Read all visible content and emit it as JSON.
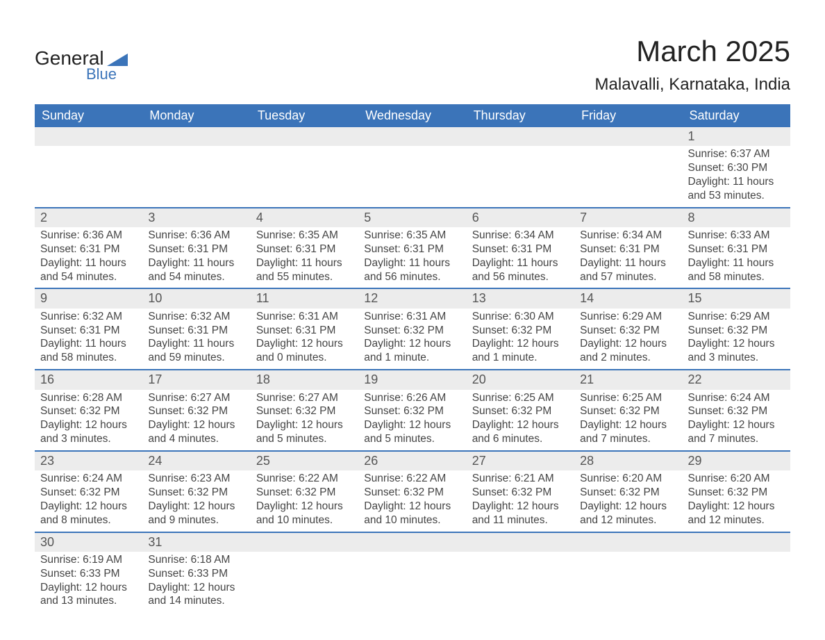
{
  "logo": {
    "word1": "General",
    "word2": "Blue",
    "triangle_color": "#3b74b9"
  },
  "title": "March 2025",
  "location": "Malavalli, Karnataka, India",
  "colors": {
    "header_bg": "#3b74b9",
    "header_text": "#ffffff",
    "band_bg": "#ececec",
    "band_text": "#555555",
    "body_text": "#444444",
    "rule": "#3b74b9",
    "page_bg": "#ffffff"
  },
  "typography": {
    "title_fontsize": 42,
    "location_fontsize": 24,
    "dow_fontsize": 18,
    "daynum_fontsize": 18,
    "body_fontsize": 15.5
  },
  "days_of_week": [
    "Sunday",
    "Monday",
    "Tuesday",
    "Wednesday",
    "Thursday",
    "Friday",
    "Saturday"
  ],
  "weeks": [
    [
      null,
      null,
      null,
      null,
      null,
      null,
      {
        "n": "1",
        "sr": "6:37 AM",
        "ss": "6:30 PM",
        "dl": "11 hours and 53 minutes."
      }
    ],
    [
      {
        "n": "2",
        "sr": "6:36 AM",
        "ss": "6:31 PM",
        "dl": "11 hours and 54 minutes."
      },
      {
        "n": "3",
        "sr": "6:36 AM",
        "ss": "6:31 PM",
        "dl": "11 hours and 54 minutes."
      },
      {
        "n": "4",
        "sr": "6:35 AM",
        "ss": "6:31 PM",
        "dl": "11 hours and 55 minutes."
      },
      {
        "n": "5",
        "sr": "6:35 AM",
        "ss": "6:31 PM",
        "dl": "11 hours and 56 minutes."
      },
      {
        "n": "6",
        "sr": "6:34 AM",
        "ss": "6:31 PM",
        "dl": "11 hours and 56 minutes."
      },
      {
        "n": "7",
        "sr": "6:34 AM",
        "ss": "6:31 PM",
        "dl": "11 hours and 57 minutes."
      },
      {
        "n": "8",
        "sr": "6:33 AM",
        "ss": "6:31 PM",
        "dl": "11 hours and 58 minutes."
      }
    ],
    [
      {
        "n": "9",
        "sr": "6:32 AM",
        "ss": "6:31 PM",
        "dl": "11 hours and 58 minutes."
      },
      {
        "n": "10",
        "sr": "6:32 AM",
        "ss": "6:31 PM",
        "dl": "11 hours and 59 minutes."
      },
      {
        "n": "11",
        "sr": "6:31 AM",
        "ss": "6:31 PM",
        "dl": "12 hours and 0 minutes."
      },
      {
        "n": "12",
        "sr": "6:31 AM",
        "ss": "6:32 PM",
        "dl": "12 hours and 1 minute."
      },
      {
        "n": "13",
        "sr": "6:30 AM",
        "ss": "6:32 PM",
        "dl": "12 hours and 1 minute."
      },
      {
        "n": "14",
        "sr": "6:29 AM",
        "ss": "6:32 PM",
        "dl": "12 hours and 2 minutes."
      },
      {
        "n": "15",
        "sr": "6:29 AM",
        "ss": "6:32 PM",
        "dl": "12 hours and 3 minutes."
      }
    ],
    [
      {
        "n": "16",
        "sr": "6:28 AM",
        "ss": "6:32 PM",
        "dl": "12 hours and 3 minutes."
      },
      {
        "n": "17",
        "sr": "6:27 AM",
        "ss": "6:32 PM",
        "dl": "12 hours and 4 minutes."
      },
      {
        "n": "18",
        "sr": "6:27 AM",
        "ss": "6:32 PM",
        "dl": "12 hours and 5 minutes."
      },
      {
        "n": "19",
        "sr": "6:26 AM",
        "ss": "6:32 PM",
        "dl": "12 hours and 5 minutes."
      },
      {
        "n": "20",
        "sr": "6:25 AM",
        "ss": "6:32 PM",
        "dl": "12 hours and 6 minutes."
      },
      {
        "n": "21",
        "sr": "6:25 AM",
        "ss": "6:32 PM",
        "dl": "12 hours and 7 minutes."
      },
      {
        "n": "22",
        "sr": "6:24 AM",
        "ss": "6:32 PM",
        "dl": "12 hours and 7 minutes."
      }
    ],
    [
      {
        "n": "23",
        "sr": "6:24 AM",
        "ss": "6:32 PM",
        "dl": "12 hours and 8 minutes."
      },
      {
        "n": "24",
        "sr": "6:23 AM",
        "ss": "6:32 PM",
        "dl": "12 hours and 9 minutes."
      },
      {
        "n": "25",
        "sr": "6:22 AM",
        "ss": "6:32 PM",
        "dl": "12 hours and 10 minutes."
      },
      {
        "n": "26",
        "sr": "6:22 AM",
        "ss": "6:32 PM",
        "dl": "12 hours and 10 minutes."
      },
      {
        "n": "27",
        "sr": "6:21 AM",
        "ss": "6:32 PM",
        "dl": "12 hours and 11 minutes."
      },
      {
        "n": "28",
        "sr": "6:20 AM",
        "ss": "6:32 PM",
        "dl": "12 hours and 12 minutes."
      },
      {
        "n": "29",
        "sr": "6:20 AM",
        "ss": "6:32 PM",
        "dl": "12 hours and 12 minutes."
      }
    ],
    [
      {
        "n": "30",
        "sr": "6:19 AM",
        "ss": "6:33 PM",
        "dl": "12 hours and 13 minutes."
      },
      {
        "n": "31",
        "sr": "6:18 AM",
        "ss": "6:33 PM",
        "dl": "12 hours and 14 minutes."
      },
      null,
      null,
      null,
      null,
      null
    ]
  ],
  "labels": {
    "sunrise": "Sunrise: ",
    "sunset": "Sunset: ",
    "daylight": "Daylight: "
  }
}
